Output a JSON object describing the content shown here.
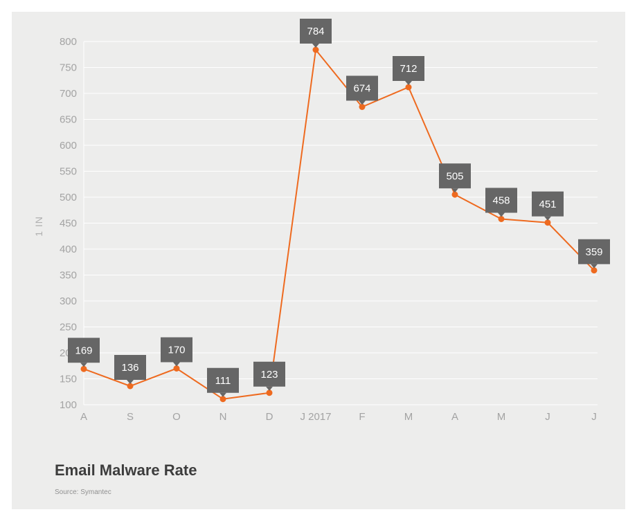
{
  "chart_data": {
    "type": "line",
    "title": "Email Malware Rate",
    "source": "Source: Symantec",
    "ylabel": "1 IN",
    "xlabel": "",
    "ylim": [
      100,
      800
    ],
    "yticks": [
      100,
      150,
      200,
      250,
      300,
      350,
      400,
      450,
      500,
      550,
      600,
      650,
      700,
      750,
      800
    ],
    "categories": [
      "A",
      "S",
      "O",
      "N",
      "D",
      "J 2017",
      "F",
      "M",
      "A",
      "M",
      "J",
      "J"
    ],
    "series": [
      {
        "name": "Email Malware Rate",
        "values": [
          169,
          136,
          170,
          111,
          123,
          784,
          674,
          712,
          505,
          458,
          451,
          359
        ]
      }
    ],
    "grid": true,
    "colors": {
      "line": "#ee6a1f",
      "label_bg": "#666666",
      "grid": "#ffffff",
      "background": "#ededec"
    }
  }
}
